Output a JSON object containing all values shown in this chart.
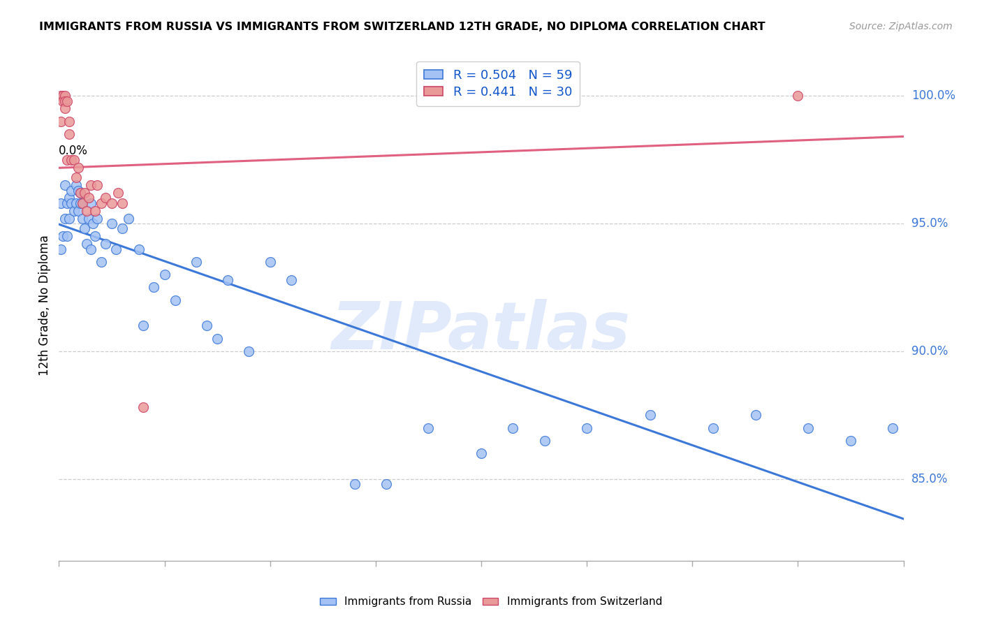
{
  "title": "IMMIGRANTS FROM RUSSIA VS IMMIGRANTS FROM SWITZERLAND 12TH GRADE, NO DIPLOMA CORRELATION CHART",
  "source": "Source: ZipAtlas.com",
  "ylabel": "12th Grade, No Diploma",
  "ytick_labels": [
    "100.0%",
    "95.0%",
    "90.0%",
    "85.0%"
  ],
  "ytick_values": [
    1.0,
    0.95,
    0.9,
    0.85
  ],
  "xlim": [
    0.0,
    0.4
  ],
  "ylim": [
    0.818,
    1.018
  ],
  "russia_fill_color": "#a4c2f4",
  "russia_edge_color": "#3c78d8",
  "switzerland_fill_color": "#ea9999",
  "switzerland_edge_color": "#cc4466",
  "russia_line_color": "#3c78d8",
  "switzerland_line_color": "#e06080",
  "R_russia": 0.504,
  "N_russia": 59,
  "R_switzerland": 0.441,
  "N_switzerland": 30,
  "watermark": "ZIPatlas",
  "russia_x": [
    0.001,
    0.001,
    0.002,
    0.003,
    0.003,
    0.004,
    0.004,
    0.005,
    0.005,
    0.006,
    0.006,
    0.007,
    0.008,
    0.008,
    0.009,
    0.009,
    0.01,
    0.01,
    0.011,
    0.011,
    0.012,
    0.013,
    0.014,
    0.015,
    0.015,
    0.016,
    0.017,
    0.018,
    0.02,
    0.022,
    0.025,
    0.027,
    0.03,
    0.033,
    0.038,
    0.04,
    0.045,
    0.05,
    0.055,
    0.065,
    0.07,
    0.075,
    0.08,
    0.09,
    0.1,
    0.11,
    0.14,
    0.155,
    0.175,
    0.2,
    0.215,
    0.23,
    0.25,
    0.28,
    0.31,
    0.33,
    0.355,
    0.375,
    0.395
  ],
  "russia_y": [
    0.94,
    0.958,
    0.945,
    0.952,
    0.965,
    0.958,
    0.945,
    0.96,
    0.952,
    0.958,
    0.963,
    0.955,
    0.958,
    0.965,
    0.955,
    0.963,
    0.958,
    0.962,
    0.952,
    0.958,
    0.948,
    0.942,
    0.952,
    0.94,
    0.958,
    0.95,
    0.945,
    0.952,
    0.935,
    0.942,
    0.95,
    0.94,
    0.948,
    0.952,
    0.94,
    0.91,
    0.925,
    0.93,
    0.92,
    0.935,
    0.91,
    0.905,
    0.928,
    0.9,
    0.935,
    0.928,
    0.848,
    0.848,
    0.87,
    0.86,
    0.87,
    0.865,
    0.87,
    0.875,
    0.87,
    0.875,
    0.87,
    0.865,
    0.87
  ],
  "switzerland_x": [
    0.001,
    0.001,
    0.002,
    0.002,
    0.003,
    0.003,
    0.003,
    0.004,
    0.004,
    0.005,
    0.005,
    0.006,
    0.007,
    0.008,
    0.009,
    0.01,
    0.011,
    0.012,
    0.013,
    0.014,
    0.015,
    0.017,
    0.018,
    0.02,
    0.022,
    0.025,
    0.028,
    0.03,
    0.04,
    0.35
  ],
  "switzerland_y": [
    1.0,
    0.99,
    1.0,
    0.998,
    1.0,
    0.998,
    0.995,
    0.998,
    0.975,
    0.99,
    0.985,
    0.975,
    0.975,
    0.968,
    0.972,
    0.962,
    0.958,
    0.962,
    0.955,
    0.96,
    0.965,
    0.955,
    0.965,
    0.958,
    0.96,
    0.958,
    0.962,
    0.958,
    0.878,
    1.0
  ]
}
